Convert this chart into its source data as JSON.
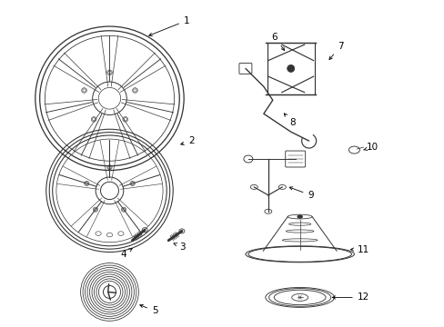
{
  "bg_color": "#ffffff",
  "line_color": "#333333",
  "text_color": "#000000",
  "fig_w": 4.89,
  "fig_h": 3.6,
  "dpi": 100
}
